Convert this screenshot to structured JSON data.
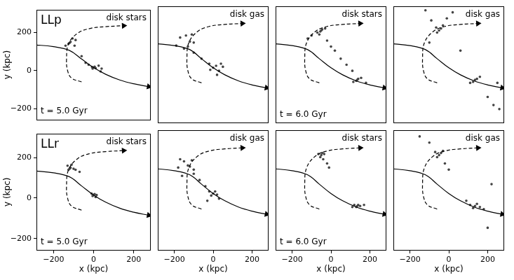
{
  "chart_data": [
    {
      "type": "scatter",
      "title": "disk stars",
      "run": "LLp",
      "time": "t = 5.0 Gyr",
      "y_label": "y (kpc)",
      "tick_labels": "y",
      "xlim": [
        -285,
        285
      ],
      "ylim": [
        -260,
        320
      ],
      "xticks": [
        {
          "value": -200,
          "label": "−200"
        },
        0,
        200
      ],
      "yticks": [
        {
          "value": -200,
          "label": "−200"
        },
        0,
        200
      ],
      "series": [
        {
          "type": "scatter",
          "marker": "dot",
          "color": "#444444",
          "x": [
            0,
            5,
            -5,
            10,
            -8,
            25,
            40,
            35,
            -25,
            -40,
            -120,
            -115,
            -125,
            -105,
            -90,
            -95,
            -140,
            -60
          ],
          "values": [
            15,
            20,
            10,
            12,
            18,
            25,
            10,
            -5,
            30,
            40,
            145,
            150,
            140,
            168,
            160,
            130,
            130,
            75
          ]
        },
        {
          "type": "line",
          "line_style": "solid",
          "marker": "arrow",
          "color": "#000000",
          "x": [
            -300,
            -200,
            -120,
            -60,
            0,
            60,
            130,
            200,
            275
          ],
          "values": [
            135,
            125,
            105,
            60,
            15,
            -20,
            -50,
            -70,
            -85
          ]
        },
        {
          "type": "line",
          "line_style": "dashed",
          "marker": "arrow",
          "color": "#000000",
          "x": [
            -60,
            -110,
            -130,
            -135,
            -125,
            -80,
            -20,
            60,
            150
          ],
          "values": [
            -60,
            -40,
            0,
            60,
            140,
            195,
            220,
            230,
            235
          ]
        }
      ]
    },
    {
      "type": "scatter",
      "title": "disk gas",
      "tick_labels": false,
      "xlim": [
        -285,
        285
      ],
      "ylim": [
        -260,
        320
      ],
      "xticks": [
        {
          "value": -200,
          "label": "−200"
        },
        0,
        200
      ],
      "yticks": [
        {
          "value": -200,
          "label": "−200"
        },
        0,
        200
      ],
      "series": [
        {
          "type": "scatter",
          "marker": "dot",
          "color": "#444444",
          "x": [
            0,
            15,
            -15,
            30,
            20,
            -20,
            -60,
            -100,
            -150,
            -190,
            -170,
            -140,
            -120,
            -100,
            -130,
            -110,
            40,
            50
          ],
          "values": [
            15,
            25,
            5,
            0,
            -20,
            35,
            60,
            90,
            110,
            125,
            165,
            175,
            145,
            140,
            120,
            180,
            35,
            20
          ]
        },
        {
          "type": "line",
          "line_style": "solid",
          "marker": "arrow",
          "color": "#000000",
          "x": [
            -300,
            -200,
            -120,
            -60,
            0,
            60,
            130,
            200,
            275
          ],
          "values": [
            135,
            125,
            105,
            60,
            15,
            -20,
            -50,
            -70,
            -85
          ]
        },
        {
          "type": "line",
          "line_style": "dashed",
          "marker": "arrow",
          "color": "#000000",
          "x": [
            -60,
            -110,
            -130,
            -135,
            -125,
            -80,
            -20,
            60,
            150
          ],
          "values": [
            -60,
            -40,
            0,
            60,
            140,
            195,
            220,
            230,
            235
          ]
        }
      ]
    },
    {
      "type": "scatter",
      "title": "disk stars",
      "time": "t = 6.0 Gyr",
      "tick_labels": false,
      "xlim": [
        -285,
        285
      ],
      "ylim": [
        -260,
        320
      ],
      "xticks": [
        {
          "value": -200,
          "label": "−200"
        },
        0,
        200
      ],
      "yticks": [
        {
          "value": -200,
          "label": "−200"
        },
        0,
        200
      ],
      "series": [
        {
          "type": "scatter",
          "marker": "dot",
          "color": "#444444",
          "x": [
            -50,
            -45,
            -55,
            -30,
            -70,
            -60,
            -20,
            0,
            20,
            50,
            80,
            110,
            135,
            140,
            130,
            155,
            115,
            -100,
            -120,
            180
          ],
          "values": [
            200,
            205,
            195,
            210,
            190,
            180,
            150,
            120,
            100,
            60,
            30,
            0,
            -45,
            -40,
            -50,
            -35,
            -55,
            175,
            160,
            -60
          ]
        },
        {
          "type": "line",
          "line_style": "solid",
          "marker": "arrow",
          "color": "#000000",
          "x": [
            -300,
            -200,
            -120,
            -60,
            0,
            60,
            130,
            200,
            275
          ],
          "values": [
            135,
            125,
            105,
            60,
            15,
            -20,
            -50,
            -70,
            -85
          ]
        },
        {
          "type": "line",
          "line_style": "dashed",
          "marker": "arrow",
          "color": "#000000",
          "x": [
            -60,
            -110,
            -130,
            -135,
            -125,
            -80,
            -20,
            60,
            150
          ],
          "values": [
            -60,
            -40,
            0,
            60,
            140,
            195,
            220,
            230,
            235
          ]
        }
      ]
    },
    {
      "type": "scatter",
      "title": "disk gas",
      "tick_labels": false,
      "xlim": [
        -285,
        285
      ],
      "ylim": [
        -260,
        320
      ],
      "xticks": [
        {
          "value": -200,
          "label": "−200"
        },
        0,
        200
      ],
      "yticks": [
        {
          "value": -200,
          "label": "−200"
        },
        0,
        200
      ],
      "series": [
        {
          "type": "scatter",
          "marker": "dot",
          "color": "#444444",
          "x": [
            -50,
            -40,
            -60,
            -30,
            -65,
            -10,
            20,
            -90,
            -120,
            135,
            145,
            125,
            160,
            110,
            200,
            230,
            260,
            -100,
            60,
            250
          ],
          "values": [
            200,
            210,
            190,
            225,
            215,
            260,
            290,
            250,
            300,
            -45,
            -40,
            -55,
            -30,
            -60,
            -130,
            -170,
            -190,
            140,
            100,
            -60
          ]
        },
        {
          "type": "line",
          "line_style": "solid",
          "marker": "arrow",
          "color": "#000000",
          "x": [
            -300,
            -200,
            -120,
            -60,
            0,
            60,
            130,
            200,
            275
          ],
          "values": [
            135,
            125,
            105,
            60,
            15,
            -20,
            -50,
            -70,
            -85
          ]
        },
        {
          "type": "line",
          "line_style": "dashed",
          "marker": "arrow",
          "color": "#000000",
          "x": [
            -60,
            -110,
            -130,
            -135,
            -125,
            -80,
            -20,
            60,
            150
          ],
          "values": [
            -60,
            -40,
            0,
            60,
            140,
            195,
            220,
            230,
            235
          ]
        }
      ]
    },
    {
      "type": "scatter",
      "title": "disk stars",
      "run": "LLr",
      "time": "t = 5.0 Gyr",
      "x_label": "x (kpc)",
      "y_label": "y (kpc)",
      "tick_labels": true,
      "xlim": [
        -285,
        285
      ],
      "ylim": [
        -260,
        320
      ],
      "xticks": [
        {
          "value": -200,
          "label": "−200"
        },
        0,
        200
      ],
      "yticks": [
        {
          "value": -200,
          "label": "−200"
        },
        0,
        200
      ],
      "series": [
        {
          "type": "scatter",
          "marker": "dot",
          "color": "#444444",
          "x": [
            0,
            5,
            -5,
            10,
            -10,
            15,
            -120,
            -115,
            -125,
            -110,
            -130,
            -90,
            -70,
            -100
          ],
          "values": [
            15,
            20,
            10,
            5,
            22,
            15,
            145,
            150,
            140,
            165,
            160,
            140,
            130,
            145
          ]
        },
        {
          "type": "line",
          "line_style": "solid",
          "marker": "arrow",
          "color": "#000000",
          "x": [
            -300,
            -200,
            -120,
            -60,
            0,
            60,
            130,
            200,
            275
          ],
          "values": [
            135,
            125,
            105,
            60,
            15,
            -20,
            -50,
            -70,
            -85
          ]
        },
        {
          "type": "line",
          "line_style": "dashed",
          "marker": "arrow",
          "color": "#000000",
          "x": [
            -60,
            -110,
            -130,
            -135,
            -125,
            -80,
            -20,
            60,
            150
          ],
          "values": [
            -60,
            -40,
            0,
            60,
            140,
            195,
            220,
            230,
            235
          ]
        }
      ]
    },
    {
      "type": "scatter",
      "title": "disk gas",
      "x_label": "x (kpc)",
      "tick_labels": "x",
      "xlim": [
        -285,
        285
      ],
      "ylim": [
        -260,
        320
      ],
      "xticks": [
        {
          "value": -200,
          "label": "−200"
        },
        0,
        200
      ],
      "yticks": [
        {
          "value": -200,
          "label": "−200"
        },
        0,
        200
      ],
      "series": [
        {
          "type": "scatter",
          "marker": "dot",
          "color": "#444444",
          "x": [
            0,
            10,
            -10,
            20,
            -20,
            -40,
            -70,
            -100,
            -130,
            -120,
            -150,
            -170,
            -110,
            -100,
            30,
            -30,
            -180,
            -160
          ],
          "values": [
            15,
            25,
            5,
            10,
            25,
            50,
            80,
            110,
            150,
            145,
            170,
            180,
            175,
            130,
            -10,
            -20,
            140,
            100
          ]
        },
        {
          "type": "line",
          "line_style": "solid",
          "marker": "arrow",
          "color": "#000000",
          "x": [
            -300,
            -200,
            -120,
            -60,
            0,
            60,
            130,
            200,
            275
          ],
          "values": [
            135,
            125,
            105,
            60,
            15,
            -20,
            -50,
            -70,
            -85
          ]
        },
        {
          "type": "line",
          "line_style": "dashed",
          "marker": "arrow",
          "color": "#000000",
          "x": [
            -60,
            -110,
            -130,
            -135,
            -125,
            -80,
            -20,
            60,
            150
          ],
          "values": [
            -60,
            -40,
            0,
            60,
            140,
            195,
            220,
            230,
            235
          ]
        }
      ]
    },
    {
      "type": "scatter",
      "title": "disk stars",
      "time": "t = 6.0 Gyr",
      "x_label": "x (kpc)",
      "tick_labels": "x",
      "xlim": [
        -285,
        285
      ],
      "ylim": [
        -260,
        320
      ],
      "xticks": [
        {
          "value": -200,
          "label": "−200"
        },
        0,
        200
      ],
      "yticks": [
        {
          "value": -200,
          "label": "−200"
        },
        0,
        200
      ],
      "series": [
        {
          "type": "scatter",
          "marker": "dot",
          "color": "#444444",
          "x": [
            -50,
            -45,
            -55,
            -35,
            -65,
            -40,
            -20,
            -10,
            135,
            140,
            130,
            150,
            120,
            170,
            110
          ],
          "values": [
            200,
            210,
            190,
            205,
            205,
            180,
            160,
            140,
            -45,
            -40,
            -50,
            -45,
            -40,
            -40,
            -50
          ]
        },
        {
          "type": "line",
          "line_style": "solid",
          "marker": "arrow",
          "color": "#000000",
          "x": [
            -300,
            -200,
            -120,
            -60,
            0,
            60,
            130,
            200,
            275
          ],
          "values": [
            135,
            125,
            105,
            60,
            15,
            -20,
            -50,
            -70,
            -85
          ]
        },
        {
          "type": "line",
          "line_style": "dashed",
          "marker": "arrow",
          "color": "#000000",
          "x": [
            -60,
            -110,
            -130,
            -135,
            -125,
            -80,
            -20,
            60,
            150
          ],
          "values": [
            -60,
            -40,
            0,
            60,
            140,
            195,
            220,
            230,
            235
          ]
        }
      ]
    },
    {
      "type": "scatter",
      "title": "disk gas",
      "x_label": "x (kpc)",
      "tick_labels": "x",
      "xlim": [
        -285,
        285
      ],
      "ylim": [
        -260,
        320
      ],
      "xticks": [
        {
          "value": -200,
          "label": "−200"
        },
        0,
        200
      ],
      "yticks": [
        {
          "value": -200,
          "label": "−200"
        },
        0,
        200
      ],
      "series": [
        {
          "type": "scatter",
          "marker": "dot",
          "color": "#444444",
          "x": [
            -50,
            -40,
            -60,
            -30,
            -70,
            -20,
            0,
            -100,
            -150,
            135,
            145,
            125,
            160,
            110,
            180,
            90,
            200,
            220
          ],
          "values": [
            200,
            210,
            190,
            220,
            215,
            160,
            130,
            260,
            290,
            -45,
            -35,
            -55,
            -50,
            -40,
            -60,
            -20,
            -150,
            60
          ]
        },
        {
          "type": "line",
          "line_style": "solid",
          "marker": "arrow",
          "color": "#000000",
          "x": [
            -300,
            -200,
            -120,
            -60,
            0,
            60,
            130,
            200,
            275
          ],
          "values": [
            135,
            125,
            105,
            60,
            15,
            -20,
            -50,
            -70,
            -85
          ]
        },
        {
          "type": "line",
          "line_style": "dashed",
          "marker": "arrow",
          "color": "#000000",
          "x": [
            -60,
            -110,
            -130,
            -135,
            -125,
            -80,
            -20,
            60,
            150
          ],
          "values": [
            -60,
            -40,
            0,
            60,
            140,
            195,
            220,
            230,
            235
          ]
        }
      ]
    }
  ]
}
